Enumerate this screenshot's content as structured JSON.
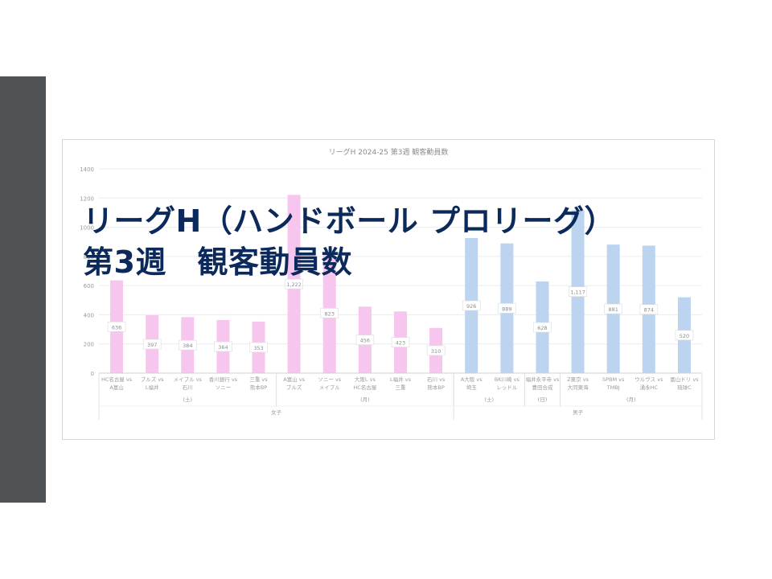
{
  "slide": {
    "title_line1": "リーグH（ハンドボール プロリーグ）",
    "title_line2": "第3週　観客動員数",
    "sidebar_color": "#4f5356"
  },
  "chart_data": {
    "type": "bar",
    "title": "リーグH 2024-25 第3週 観客動員数",
    "ylim": [
      0,
      1400
    ],
    "yticks": [
      0,
      200,
      400,
      600,
      800,
      1000,
      1200,
      1400
    ],
    "grid": true,
    "categories": [
      "HC名古屋 vs A富山",
      "ブルズ vs L福井",
      "メイプル vs 石川",
      "香川銀行 vs ソニー",
      "三重 vs 熊本BP",
      "A富山 vs ブルズ",
      "ソニー vs メイプル",
      "大阪L vs HC名古屋",
      "L福井 vs 三重",
      "石川 vs 熊本BP",
      "A大阪 vs 埼玉",
      "BK川崎 vs レッドル",
      "福井永平寺 vs 豊田合成",
      "Z東京 vs 大同東海",
      "SPBM vs TMBJ",
      "ウルヴス vs 湧永HC",
      "富山ドリ vs 琉球C"
    ],
    "values": [
      636,
      397,
      384,
      364,
      353,
      1222,
      823,
      456,
      423,
      310,
      926,
      889,
      628,
      1117,
      881,
      874,
      520
    ],
    "value_labels": [
      "636",
      "397",
      "384",
      "364",
      "353",
      "1,222",
      "823",
      "456",
      "423",
      "310",
      "926",
      "889",
      "628",
      "1,117",
      "881",
      "874",
      "520"
    ],
    "groups": [
      {
        "name": "女子",
        "color": "#f7c6ee",
        "days": [
          {
            "label": "(土)",
            "count": 5
          },
          {
            "label": "(月)",
            "count": 5
          }
        ]
      },
      {
        "name": "男子",
        "color": "#bcd4f0",
        "days": [
          {
            "label": "(土)",
            "count": 2
          },
          {
            "label": "(日)",
            "count": 1
          },
          {
            "label": "(月)",
            "count": 4
          }
        ]
      }
    ]
  }
}
